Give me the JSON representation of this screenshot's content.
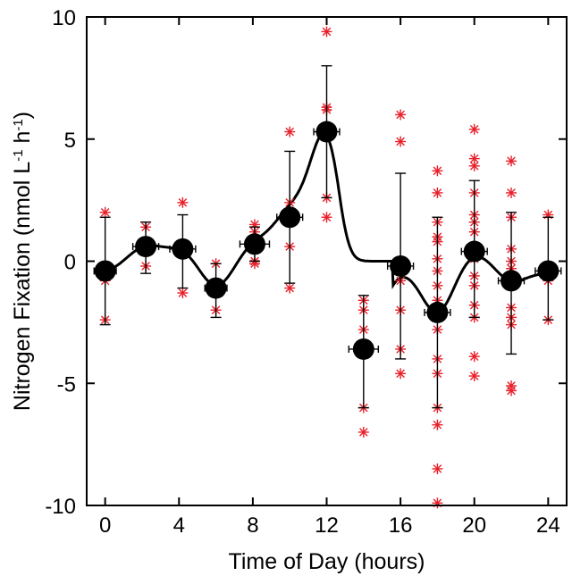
{
  "chart_data": {
    "type": "scatter",
    "xlabel": "Time of Day (hours)",
    "ylabel": {
      "parts": [
        "Nitrogen Fixation (nmol L",
        "-1",
        " h",
        "-1",
        ")"
      ]
    },
    "xlim": [
      -1,
      25
    ],
    "ylim": [
      -10,
      10
    ],
    "x_ticks": [
      0,
      4,
      8,
      12,
      16,
      20,
      24
    ],
    "y_ticks": [
      -10,
      -5,
      0,
      5,
      10
    ],
    "x_tick_labels": [
      "0",
      "4",
      "8",
      "12",
      "16",
      "20",
      "24"
    ],
    "y_tick_labels": [
      "-10",
      "-5",
      "0",
      "5",
      "10"
    ],
    "grid": false,
    "colors": {
      "means": "#000000",
      "replicates": "#e8202a",
      "fit": "#000000"
    },
    "means": [
      {
        "x": 0,
        "y": -0.4,
        "y_low": -2.6,
        "y_high": 1.8,
        "x_low": -0.6,
        "x_high": 0.6
      },
      {
        "x": 2.2,
        "y": 0.6,
        "y_low": -0.5,
        "y_high": 1.6,
        "x_low": 1.5,
        "x_high": 2.9
      },
      {
        "x": 4.2,
        "y": 0.5,
        "y_low": -1.1,
        "y_high": 1.9,
        "x_low": 3.5,
        "x_high": 4.9
      },
      {
        "x": 6.0,
        "y": -1.1,
        "y_low": -2.3,
        "y_high": -0.1,
        "x_low": 5.4,
        "x_high": 6.6
      },
      {
        "x": 8.1,
        "y": 0.7,
        "y_low": 0.0,
        "y_high": 1.4,
        "x_low": 7.3,
        "x_high": 8.9
      },
      {
        "x": 10.0,
        "y": 1.8,
        "y_low": -0.9,
        "y_high": 4.5,
        "x_low": 9.3,
        "x_high": 10.7
      },
      {
        "x": 12.0,
        "y": 5.3,
        "y_low": 2.6,
        "y_high": 8.0,
        "x_low": 11.3,
        "x_high": 12.7
      },
      {
        "x": 14.0,
        "y": -3.6,
        "y_low": -6.0,
        "y_high": -1.4,
        "x_low": 13.2,
        "x_high": 14.8
      },
      {
        "x": 16.0,
        "y": -0.2,
        "y_low": -4.0,
        "y_high": 3.6,
        "x_low": 15.3,
        "x_high": 16.7
      },
      {
        "x": 18.0,
        "y": -2.1,
        "y_low": -6.0,
        "y_high": 1.8,
        "x_low": 17.3,
        "x_high": 18.7
      },
      {
        "x": 20.0,
        "y": 0.4,
        "y_low": -2.3,
        "y_high": 3.3,
        "x_low": 19.3,
        "x_high": 20.7
      },
      {
        "x": 22.0,
        "y": -0.8,
        "y_low": -3.8,
        "y_high": 2.0,
        "x_low": 21.3,
        "x_high": 22.7
      },
      {
        "x": 24.0,
        "y": -0.4,
        "y_low": -2.4,
        "y_high": 1.8,
        "x_low": 23.3,
        "x_high": 24.7
      }
    ],
    "replicates": [
      {
        "x": 0,
        "y": 2.0
      },
      {
        "x": 0,
        "y": -0.8
      },
      {
        "x": 0,
        "y": -2.4
      },
      {
        "x": 2.2,
        "y": 1.4
      },
      {
        "x": 2.2,
        "y": 0.7
      },
      {
        "x": 2.2,
        "y": -0.2
      },
      {
        "x": 4.2,
        "y": 2.4
      },
      {
        "x": 4.2,
        "y": 0.5
      },
      {
        "x": 4.2,
        "y": -1.3
      },
      {
        "x": 6.0,
        "y": -0.1
      },
      {
        "x": 6.0,
        "y": -1.0
      },
      {
        "x": 6.0,
        "y": -2.0
      },
      {
        "x": 8.1,
        "y": 1.5
      },
      {
        "x": 8.1,
        "y": 1.2
      },
      {
        "x": 8.1,
        "y": 0.0
      },
      {
        "x": 8.1,
        "y": -0.1
      },
      {
        "x": 10.0,
        "y": 5.3
      },
      {
        "x": 10.0,
        "y": 2.4
      },
      {
        "x": 10.0,
        "y": 0.6
      },
      {
        "x": 10.0,
        "y": -1.1
      },
      {
        "x": 12.0,
        "y": 9.4
      },
      {
        "x": 12.0,
        "y": 6.3
      },
      {
        "x": 12.0,
        "y": 6.2
      },
      {
        "x": 12.0,
        "y": 2.6
      },
      {
        "x": 12.0,
        "y": 1.8
      },
      {
        "x": 14.0,
        "y": -1.6
      },
      {
        "x": 14.0,
        "y": -2.0
      },
      {
        "x": 14.0,
        "y": -2.8
      },
      {
        "x": 14.0,
        "y": -3.5
      },
      {
        "x": 14.0,
        "y": -6.0
      },
      {
        "x": 14.0,
        "y": -7.0
      },
      {
        "x": 16.0,
        "y": 6.0
      },
      {
        "x": 16.0,
        "y": 4.9
      },
      {
        "x": 16.0,
        "y": -0.2
      },
      {
        "x": 16.0,
        "y": -0.8
      },
      {
        "x": 16.0,
        "y": -2.0
      },
      {
        "x": 16.0,
        "y": -3.6
      },
      {
        "x": 16.0,
        "y": -4.6
      },
      {
        "x": 18.0,
        "y": 3.7
      },
      {
        "x": 18.0,
        "y": 2.8
      },
      {
        "x": 18.0,
        "y": 1.6
      },
      {
        "x": 18.0,
        "y": 1.0
      },
      {
        "x": 18.0,
        "y": 0.8
      },
      {
        "x": 18.0,
        "y": 0.1
      },
      {
        "x": 18.0,
        "y": -0.4
      },
      {
        "x": 18.0,
        "y": -1.0
      },
      {
        "x": 18.0,
        "y": -1.6
      },
      {
        "x": 18.0,
        "y": -2.8
      },
      {
        "x": 18.0,
        "y": -4.0
      },
      {
        "x": 18.0,
        "y": -4.6
      },
      {
        "x": 18.0,
        "y": -6.0
      },
      {
        "x": 18.0,
        "y": -6.7
      },
      {
        "x": 18.0,
        "y": -8.5
      },
      {
        "x": 18.0,
        "y": -9.9
      },
      {
        "x": 20.0,
        "y": 5.4
      },
      {
        "x": 20.0,
        "y": 4.2
      },
      {
        "x": 20.0,
        "y": 3.9
      },
      {
        "x": 20.0,
        "y": 2.8
      },
      {
        "x": 20.0,
        "y": 1.9
      },
      {
        "x": 20.0,
        "y": 1.6
      },
      {
        "x": 20.0,
        "y": 1.2
      },
      {
        "x": 20.0,
        "y": 0.1
      },
      {
        "x": 20.0,
        "y": -0.6
      },
      {
        "x": 20.0,
        "y": -1.0
      },
      {
        "x": 20.0,
        "y": -1.8
      },
      {
        "x": 20.0,
        "y": -2.3
      },
      {
        "x": 20.0,
        "y": -3.9
      },
      {
        "x": 20.0,
        "y": -4.7
      },
      {
        "x": 22.0,
        "y": 4.1
      },
      {
        "x": 22.0,
        "y": 2.8
      },
      {
        "x": 22.0,
        "y": 1.8
      },
      {
        "x": 22.0,
        "y": 0.5
      },
      {
        "x": 22.0,
        "y": 0.0
      },
      {
        "x": 22.0,
        "y": -0.3
      },
      {
        "x": 22.0,
        "y": -1.9
      },
      {
        "x": 22.0,
        "y": -2.3
      },
      {
        "x": 22.0,
        "y": -2.6
      },
      {
        "x": 22.0,
        "y": -5.1
      },
      {
        "x": 22.0,
        "y": -5.3
      },
      {
        "x": 24.0,
        "y": 1.9
      },
      {
        "x": 24.0,
        "y": -0.8
      },
      {
        "x": 24.0,
        "y": -2.4
      }
    ]
  }
}
